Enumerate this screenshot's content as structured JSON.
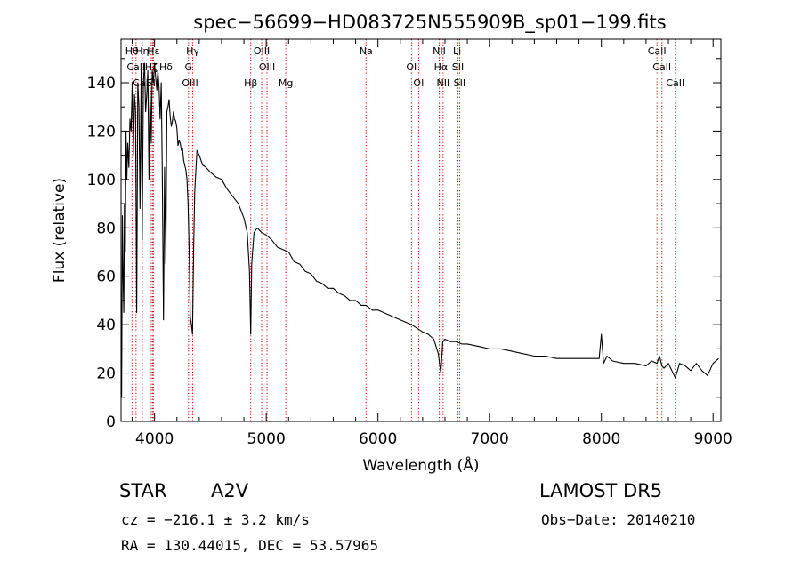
{
  "chart_data": {
    "type": "line",
    "title": "spec−56699−HD083725N555909B_sp01−199.fits",
    "xlabel": "Wavelength (Å)",
    "ylabel": "Flux (relative)",
    "xlim": [
      3700,
      9070
    ],
    "ylim": [
      0,
      158
    ],
    "xticks": [
      4000,
      5000,
      6000,
      7000,
      8000,
      9000
    ],
    "yticks": [
      0,
      20,
      40,
      60,
      80,
      100,
      120,
      140
    ],
    "grid": false,
    "series": [
      {
        "x": [
          3700,
          3705,
          3712,
          3718,
          3725,
          3730,
          3738,
          3745,
          3752,
          3760,
          3770,
          3780,
          3790,
          3800,
          3810,
          3820,
          3830,
          3840,
          3850,
          3860,
          3870,
          3880,
          3890,
          3900,
          3910,
          3920,
          3930,
          3940,
          3950,
          3960,
          3970,
          3980,
          3990,
          4000,
          4010,
          4020,
          4030,
          4040,
          4050,
          4060,
          4070,
          4080,
          4090,
          4101,
          4110,
          4120,
          4130,
          4140,
          4150,
          4160,
          4170,
          4180,
          4190,
          4200,
          4210,
          4220,
          4230,
          4240,
          4250,
          4260,
          4270,
          4280,
          4290,
          4300,
          4310,
          4320,
          4330,
          4340,
          4350,
          4360,
          4370,
          4380,
          4400,
          4430,
          4460,
          4500,
          4550,
          4600,
          4650,
          4700,
          4750,
          4800,
          4830,
          4850,
          4861,
          4870,
          4890,
          4920,
          4960,
          5000,
          5050,
          5100,
          5150,
          5200,
          5250,
          5300,
          5350,
          5400,
          5450,
          5500,
          5550,
          5600,
          5650,
          5700,
          5750,
          5800,
          5850,
          5893,
          5950,
          6000,
          6100,
          6200,
          6300,
          6400,
          6450,
          6500,
          6540,
          6563,
          6580,
          6600,
          6650,
          6700,
          6750,
          6800,
          6900,
          7000,
          7100,
          7200,
          7300,
          7400,
          7500,
          7600,
          7700,
          7800,
          7900,
          7980,
          8000,
          8020,
          8050,
          8100,
          8200,
          8300,
          8400,
          8450,
          8498,
          8520,
          8542,
          8560,
          8600,
          8662,
          8700,
          8750,
          8800,
          8850,
          8900,
          8950,
          9000,
          9050
        ],
        "y": [
          25,
          10,
          85,
          60,
          45,
          90,
          70,
          120,
          100,
          115,
          105,
          125,
          120,
          140,
          110,
          135,
          128,
          45,
          140,
          130,
          88,
          145,
          75,
          140,
          148,
          128,
          135,
          145,
          100,
          138,
          115,
          145,
          140,
          148,
          142,
          137,
          145,
          138,
          125,
          140,
          100,
          42,
          105,
          65,
          128,
          130,
          133,
          126,
          122,
          124,
          128,
          125,
          124,
          121,
          114,
          116,
          115,
          112,
          113,
          108,
          106,
          104,
          100,
          90,
          70,
          43,
          40,
          36,
          72,
          95,
          104,
          112,
          110,
          106,
          105,
          103,
          101,
          100,
          96,
          93,
          90,
          84,
          78,
          62,
          36,
          65,
          78,
          80,
          78,
          77,
          75,
          72,
          71,
          70,
          66,
          65,
          62,
          61,
          58,
          57,
          55,
          55,
          53,
          52,
          50,
          50,
          48,
          48,
          46,
          46,
          44,
          42,
          40,
          37,
          36,
          34,
          28,
          20,
          33,
          34,
          33,
          33,
          32,
          32,
          31,
          30,
          30,
          29,
          28,
          27,
          27,
          26,
          26,
          26,
          26,
          26,
          36,
          24,
          27,
          25,
          24,
          24,
          23,
          25,
          24,
          27,
          23,
          22,
          24,
          18,
          24,
          23,
          21,
          24,
          21,
          19,
          24,
          26
        ]
      }
    ],
    "line_markers": [
      {
        "label": "Hθ",
        "x": 3798
      },
      {
        "label": "CaII",
        "x": 3834
      },
      {
        "label": "CaII",
        "x": 3889
      },
      {
        "label": "Hη",
        "x": 3890
      },
      {
        "label": "Hζ",
        "x": 3970
      },
      {
        "label": "SII",
        "x": 3982
      },
      {
        "label": "Hε",
        "x": 3990
      },
      {
        "label": "Hδ",
        "x": 4102
      },
      {
        "label": "OIII",
        "x": 4318
      },
      {
        "label": "Hγ",
        "x": 4341
      },
      {
        "label": "G",
        "x": 4304
      },
      {
        "label": "Hβ",
        "x": 4861
      },
      {
        "label": "OIII",
        "x": 4959
      },
      {
        "label": "OIII",
        "x": 5007
      },
      {
        "label": "Mg",
        "x": 5175
      },
      {
        "label": "Na",
        "x": 5893
      },
      {
        "label": "OI",
        "x": 6300
      },
      {
        "label": "OI",
        "x": 6364
      },
      {
        "label": "NII",
        "x": 6548
      },
      {
        "label": "Hα",
        "x": 6563
      },
      {
        "label": "NII",
        "x": 6583
      },
      {
        "label": "Li",
        "x": 6708
      },
      {
        "label": "SII",
        "x": 6716
      },
      {
        "label": "SII",
        "x": 6731
      },
      {
        "label": "CaII",
        "x": 8498
      },
      {
        "label": "CaII",
        "x": 8542
      },
      {
        "label": "CaII",
        "x": 8662
      }
    ]
  },
  "info": {
    "object_class": "STAR",
    "subclass": "A2V",
    "survey": "LAMOST  DR5",
    "redshift_text": "cz = −216.1 ± 3.2 km/s",
    "obs_date": "Obs−Date: 20140210",
    "coords": "RA = 130.44015, DEC =  53.57965"
  }
}
